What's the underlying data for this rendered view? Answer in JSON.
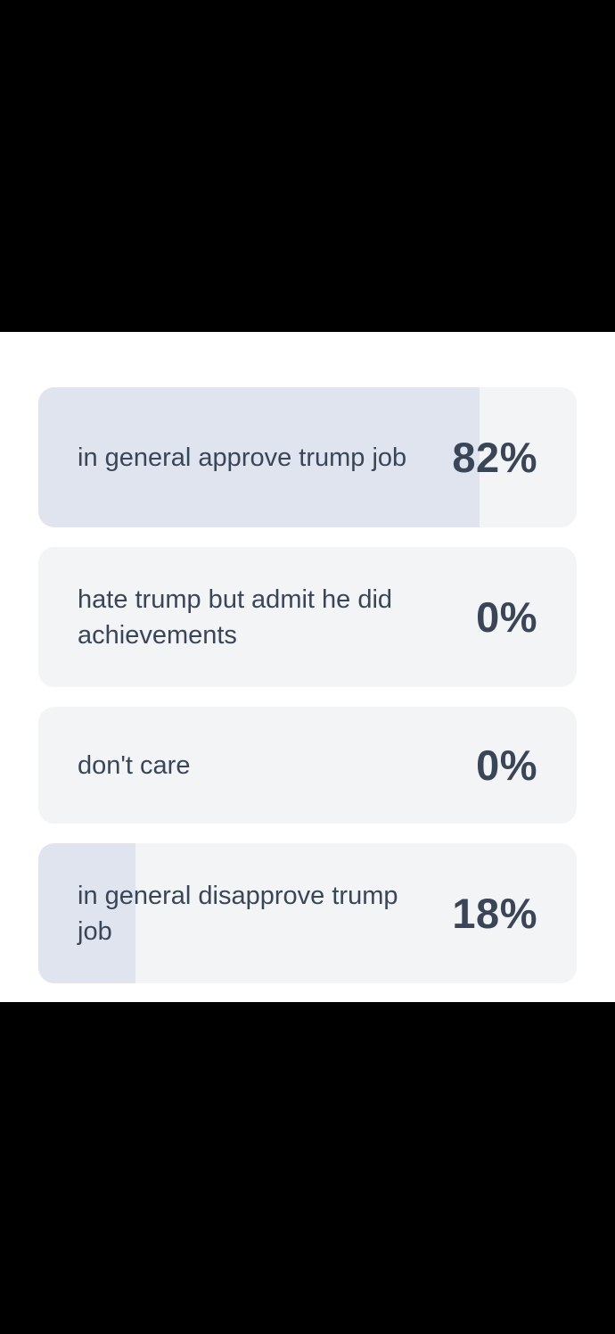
{
  "poll": {
    "options": [
      {
        "label": "in general approve trump job",
        "percent_label": "82%",
        "percent": 82
      },
      {
        "label": "hate trump but admit he did achievements",
        "percent_label": "0%",
        "percent": 0
      },
      {
        "label": "don't care",
        "percent_label": "0%",
        "percent": 0
      },
      {
        "label": "in general disapprove trump job",
        "percent_label": "18%",
        "percent": 18
      }
    ]
  },
  "colors": {
    "card_bg": "#f3f4f6",
    "bar_fill": "#e0e4ee",
    "text": "#3a4658"
  }
}
